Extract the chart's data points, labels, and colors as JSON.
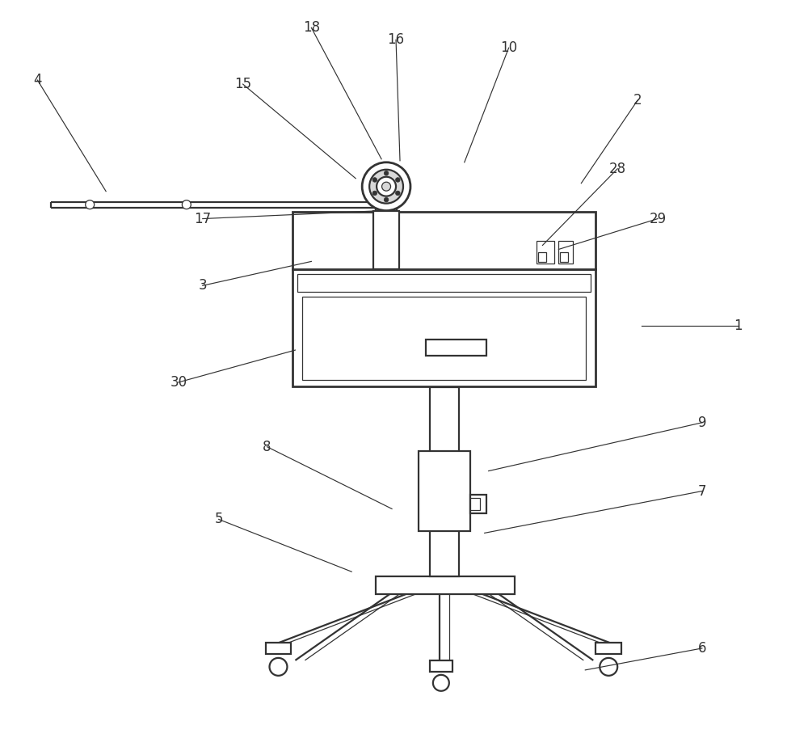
{
  "bg_color": "#ffffff",
  "line_color": "#333333",
  "lw": 1.6,
  "lw_thin": 0.9,
  "lw_thick": 2.0,
  "label_fontsize": 12,
  "fig_width": 10.0,
  "fig_height": 9.08,
  "annotations": [
    [
      "1",
      [
        9.15,
        5.05
      ],
      [
        7.95,
        5.05
      ]
    ],
    [
      "2",
      [
        7.9,
        7.85
      ],
      [
        7.2,
        6.82
      ]
    ],
    [
      "3",
      [
        2.5,
        5.55
      ],
      [
        3.85,
        5.85
      ]
    ],
    [
      "4",
      [
        0.45,
        8.1
      ],
      [
        1.3,
        6.72
      ]
    ],
    [
      "5",
      [
        2.7,
        2.65
      ],
      [
        4.35,
        2.0
      ]
    ],
    [
      "6",
      [
        8.7,
        1.05
      ],
      [
        7.25,
        0.78
      ]
    ],
    [
      "7",
      [
        8.7,
        3.0
      ],
      [
        6.0,
        2.48
      ]
    ],
    [
      "8",
      [
        3.3,
        3.55
      ],
      [
        4.85,
        2.78
      ]
    ],
    [
      "9",
      [
        8.7,
        3.85
      ],
      [
        6.05,
        3.25
      ]
    ],
    [
      "10",
      [
        6.3,
        8.5
      ],
      [
        5.75,
        7.08
      ]
    ],
    [
      "15",
      [
        3.0,
        8.05
      ],
      [
        4.4,
        6.88
      ]
    ],
    [
      "16",
      [
        4.9,
        8.6
      ],
      [
        4.95,
        7.1
      ]
    ],
    [
      "17",
      [
        2.5,
        6.38
      ],
      [
        4.72,
        6.48
      ]
    ],
    [
      "18",
      [
        3.85,
        8.75
      ],
      [
        4.72,
        7.12
      ]
    ],
    [
      "28",
      [
        7.65,
        7.0
      ],
      [
        6.72,
        6.05
      ]
    ],
    [
      "29",
      [
        8.15,
        6.38
      ],
      [
        6.92,
        6.0
      ]
    ],
    [
      "30",
      [
        2.2,
        4.35
      ],
      [
        3.65,
        4.75
      ]
    ]
  ]
}
